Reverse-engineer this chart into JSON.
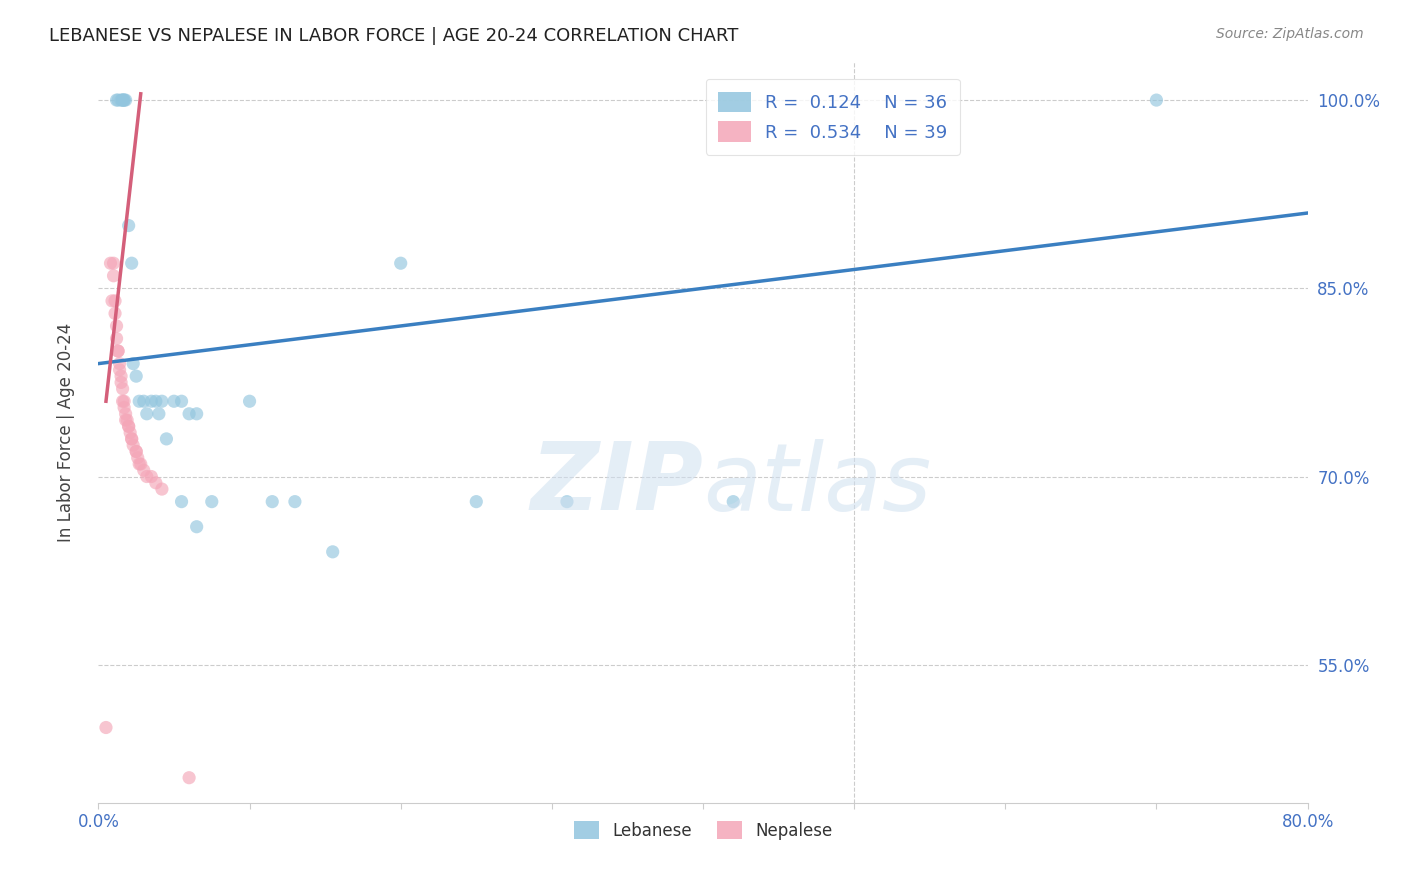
{
  "title": "LEBANESE VS NEPALESE IN LABOR FORCE | AGE 20-24 CORRELATION CHART",
  "source": "Source: ZipAtlas.com",
  "ylabel_label": "In Labor Force | Age 20-24",
  "xlim": [
    0.0,
    0.8
  ],
  "ylim": [
    0.44,
    1.03
  ],
  "yticks": [
    0.55,
    0.7,
    0.85,
    1.0
  ],
  "yticklabels": [
    "55.0%",
    "70.0%",
    "85.0%",
    "100.0%"
  ],
  "grid_color": "#cccccc",
  "background_color": "#ffffff",
  "legend_R_blue": "0.124",
  "legend_N_blue": "36",
  "legend_R_pink": "0.534",
  "legend_N_pink": "39",
  "blue_color": "#92c5de",
  "pink_color": "#f4a6b8",
  "blue_line_color": "#3a7fc1",
  "pink_line_color": "#d45f7a",
  "scatter_alpha": 0.65,
  "scatter_size": 90,
  "lebanese_x": [
    0.012,
    0.013,
    0.015,
    0.016,
    0.016,
    0.017,
    0.017,
    0.018,
    0.02,
    0.022,
    0.023,
    0.025,
    0.027,
    0.03,
    0.032,
    0.035,
    0.038,
    0.04,
    0.042,
    0.045,
    0.05,
    0.055,
    0.06,
    0.065,
    0.1,
    0.115,
    0.13,
    0.155,
    0.2,
    0.25,
    0.31,
    0.42,
    0.055,
    0.065,
    0.075,
    0.7
  ],
  "lebanese_y": [
    1.0,
    1.0,
    1.0,
    1.0,
    1.0,
    1.0,
    1.0,
    1.0,
    0.9,
    0.87,
    0.79,
    0.78,
    0.76,
    0.76,
    0.75,
    0.76,
    0.76,
    0.75,
    0.76,
    0.73,
    0.76,
    0.76,
    0.75,
    0.75,
    0.76,
    0.68,
    0.68,
    0.64,
    0.87,
    0.68,
    0.68,
    0.68,
    0.68,
    0.66,
    0.68,
    1.0
  ],
  "nepalese_x": [
    0.005,
    0.008,
    0.009,
    0.01,
    0.01,
    0.011,
    0.011,
    0.012,
    0.012,
    0.013,
    0.013,
    0.014,
    0.014,
    0.015,
    0.015,
    0.016,
    0.016,
    0.017,
    0.017,
    0.018,
    0.018,
    0.019,
    0.02,
    0.02,
    0.021,
    0.022,
    0.022,
    0.023,
    0.025,
    0.025,
    0.026,
    0.027,
    0.028,
    0.03,
    0.032,
    0.035,
    0.038,
    0.042,
    0.06
  ],
  "nepalese_y": [
    0.5,
    0.87,
    0.84,
    0.87,
    0.86,
    0.84,
    0.83,
    0.82,
    0.81,
    0.8,
    0.8,
    0.79,
    0.785,
    0.78,
    0.775,
    0.77,
    0.76,
    0.76,
    0.755,
    0.75,
    0.745,
    0.745,
    0.74,
    0.74,
    0.735,
    0.73,
    0.73,
    0.725,
    0.72,
    0.72,
    0.715,
    0.71,
    0.71,
    0.705,
    0.7,
    0.7,
    0.695,
    0.69,
    0.46
  ],
  "blue_trendline": [
    0.0,
    0.8,
    0.79,
    0.91
  ],
  "pink_trendline": [
    0.005,
    0.055,
    1.005,
    1.005
  ]
}
